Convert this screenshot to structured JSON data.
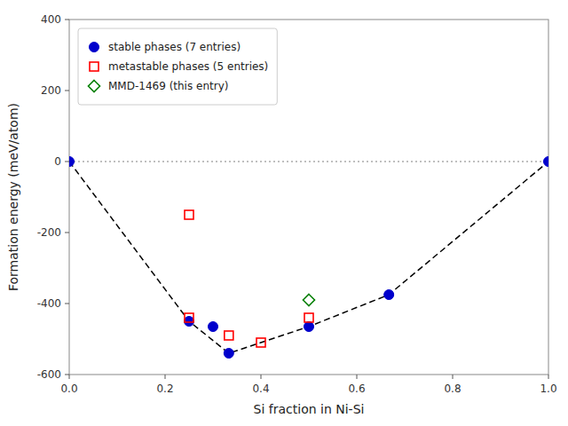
{
  "chart_data": {
    "type": "scatter",
    "xlabel": "Si fraction in Ni-Si",
    "ylabel": "Formation energy (meV/atom)",
    "xlim": [
      0.0,
      1.0
    ],
    "ylim": [
      -600,
      400
    ],
    "xticks": [
      {
        "value": 0.0,
        "label": "0.0"
      },
      0.2,
      0.4,
      0.6,
      0.8,
      {
        "value": 1.0,
        "label": "1.0"
      }
    ],
    "yticks": [
      -600,
      -400,
      -200,
      0,
      200,
      400
    ],
    "grid": false,
    "legend": "upper left",
    "series": [
      {
        "type": "hline",
        "color": "gray",
        "line_style": "dotted",
        "values": [
          0
        ]
      },
      {
        "type": "line",
        "color": "black",
        "line_style": "dashed",
        "x": [
          0.0,
          0.25,
          0.333,
          0.5,
          0.667,
          1.0
        ],
        "values": [
          0,
          -450,
          -540,
          -465,
          -375,
          0
        ]
      },
      {
        "type": "scatter",
        "name": "stable phases (7 entries)",
        "color": "#0000cc",
        "marker": "circle",
        "x": [
          0.0,
          0.25,
          0.3,
          0.333,
          0.5,
          0.667,
          1.0
        ],
        "values": [
          0,
          -450,
          -465,
          -540,
          -465,
          -375,
          0
        ]
      },
      {
        "type": "scatter",
        "name": "metastable phases (5 entries)",
        "color": "red",
        "marker": "open-square",
        "x": [
          0.25,
          0.25,
          0.333,
          0.4,
          0.5
        ],
        "values": [
          -150,
          -440,
          -490,
          -510,
          -440
        ]
      },
      {
        "type": "scatter",
        "name": "MMD-1469 (this entry)",
        "color": "green",
        "marker": "open-diamond",
        "x": [
          0.5
        ],
        "values": [
          -390
        ]
      }
    ]
  }
}
